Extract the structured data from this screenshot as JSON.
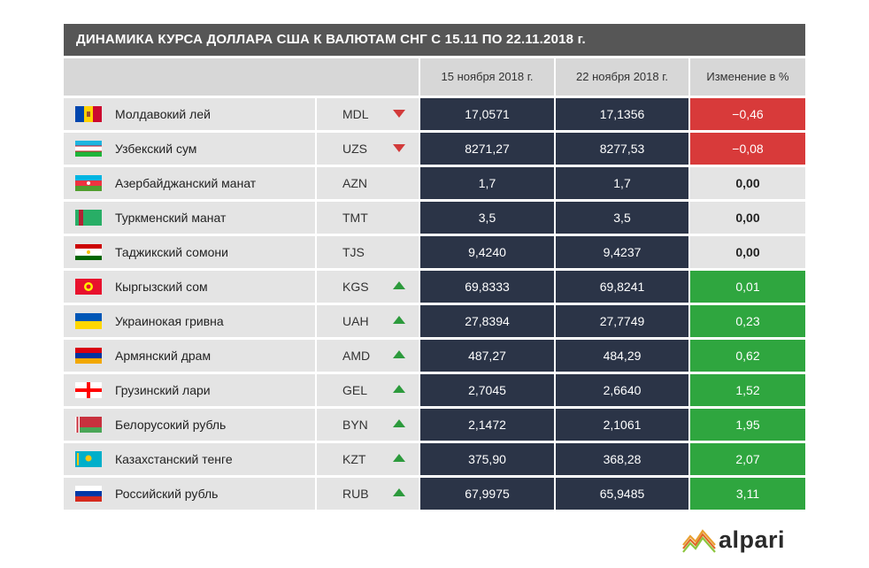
{
  "title": "ДИНАМИКА КУРСА ДОЛЛАРА США К ВАЛЮТАМ СНГ С 15.11 ПО 22.11.2018 г.",
  "headers": {
    "date1": "15 ноября 2018 г.",
    "date2": "22 ноября 2018 г.",
    "change": "Изменение в %"
  },
  "colors": {
    "negative": "#d83a3a",
    "positive": "#2fa63f",
    "dark": "#2b3447"
  },
  "rows": [
    {
      "name": "Молдавокий лей",
      "code": "MDL",
      "trend": "down",
      "v1": "17,0571",
      "v2": "17,1356",
      "change": "−0,46",
      "status": "neg",
      "flag": "moldova-flag-icon"
    },
    {
      "name": "Узбекский сум",
      "code": "UZS",
      "trend": "down",
      "v1": "8271,27",
      "v2": "8277,53",
      "change": "−0,08",
      "status": "neg",
      "flag": "uzbekistan-flag-icon"
    },
    {
      "name": "Азербайджанский манат",
      "code": "AZN",
      "trend": "none",
      "v1": "1,7",
      "v2": "1,7",
      "change": "0,00",
      "status": "zero",
      "flag": "azerbaijan-flag-icon"
    },
    {
      "name": "Туркменский манат",
      "code": "TMT",
      "trend": "none",
      "v1": "3,5",
      "v2": "3,5",
      "change": "0,00",
      "status": "zero",
      "flag": "turkmenistan-flag-icon"
    },
    {
      "name": "Таджикский сомони",
      "code": "TJS",
      "trend": "none",
      "v1": "9,4240",
      "v2": "9,4237",
      "change": "0,00",
      "status": "zero",
      "flag": "tajikistan-flag-icon"
    },
    {
      "name": "Кыргызский сом",
      "code": "KGS",
      "trend": "up",
      "v1": "69,8333",
      "v2": "69,8241",
      "change": "0,01",
      "status": "pos",
      "flag": "kyrgyzstan-flag-icon"
    },
    {
      "name": "Украинокая гривна",
      "code": "UAH",
      "trend": "up",
      "v1": "27,8394",
      "v2": "27,7749",
      "change": "0,23",
      "status": "pos",
      "flag": "ukraine-flag-icon"
    },
    {
      "name": "Армянский драм",
      "code": "AMD",
      "trend": "up",
      "v1": "487,27",
      "v2": "484,29",
      "change": "0,62",
      "status": "pos",
      "flag": "armenia-flag-icon"
    },
    {
      "name": "Грузинский лари",
      "code": "GEL",
      "trend": "up",
      "v1": "2,7045",
      "v2": "2,6640",
      "change": "1,52",
      "status": "pos",
      "flag": "georgia-flag-icon"
    },
    {
      "name": "Белорусокий рубль",
      "code": "BYN",
      "trend": "up",
      "v1": "2,1472",
      "v2": "2,1061",
      "change": "1,95",
      "status": "pos",
      "flag": "belarus-flag-icon"
    },
    {
      "name": "Казахстанский тенге",
      "code": "KZT",
      "trend": "up",
      "v1": "375,90",
      "v2": "368,28",
      "change": "2,07",
      "status": "pos",
      "flag": "kazakhstan-flag-icon"
    },
    {
      "name": "Российский рубль",
      "code": "RUB",
      "trend": "up",
      "v1": "67,9975",
      "v2": "65,9485",
      "change": "3,11",
      "status": "pos",
      "flag": "russia-flag-icon"
    }
  ],
  "brand": {
    "name": "alpari",
    "icon": "alpari-logo-icon"
  }
}
